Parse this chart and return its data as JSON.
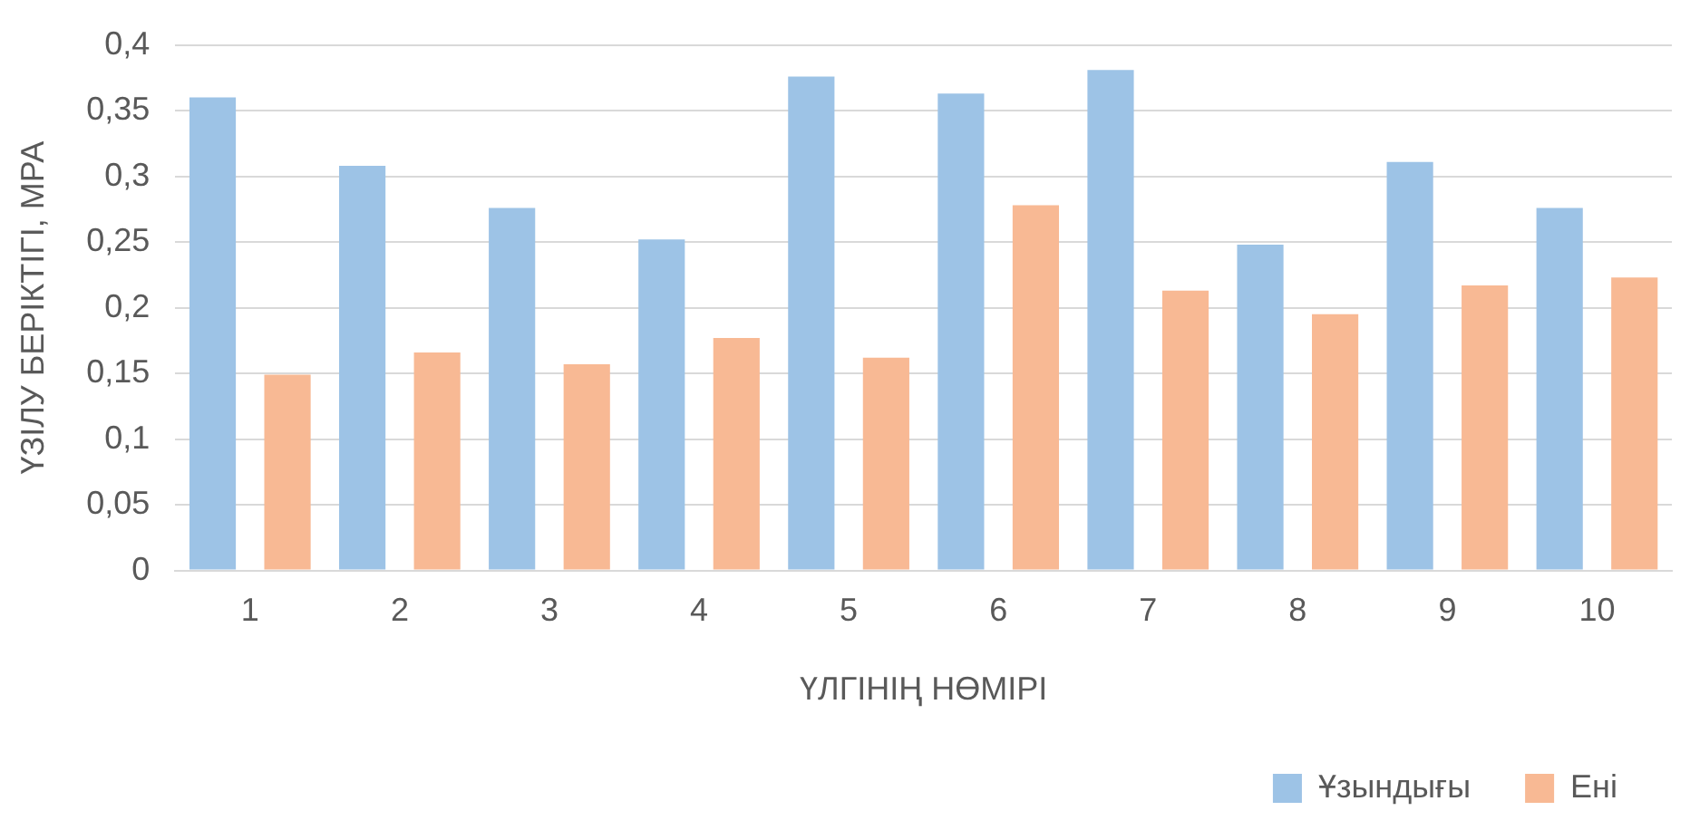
{
  "chart_data": {
    "type": "bar",
    "xlabel": "ҮЛГІНІҢ НӨМІРІ",
    "ylabel": "ҮЗІЛУ БЕРІКТІГІ, МРА",
    "categories": [
      "1",
      "2",
      "3",
      "4",
      "5",
      "6",
      "7",
      "8",
      "9",
      "10"
    ],
    "series": [
      {
        "name": "Ұзындығы",
        "color": "#9dc3e6",
        "values": [
          0.36,
          0.308,
          0.276,
          0.252,
          0.376,
          0.363,
          0.381,
          0.248,
          0.311,
          0.276
        ]
      },
      {
        "name": "Ені",
        "color": "#f8b994",
        "values": [
          0.149,
          0.166,
          0.157,
          0.177,
          0.162,
          0.278,
          0.213,
          0.195,
          0.217,
          0.223
        ]
      }
    ],
    "ylim": [
      0,
      0.4
    ],
    "yticks": [
      0,
      {
        "value": 0.05,
        "label": "0,05"
      },
      {
        "value": 0.1,
        "label": "0,1"
      },
      {
        "value": 0.15,
        "label": "0,15"
      },
      {
        "value": 0.2,
        "label": "0,2"
      },
      {
        "value": 0.25,
        "label": "0,25"
      },
      {
        "value": 0.3,
        "label": "0,3"
      },
      {
        "value": 0.35,
        "label": "0,35"
      },
      {
        "value": 0.4,
        "label": "0,4"
      }
    ],
    "grid": "y",
    "legend": "bottom right"
  }
}
